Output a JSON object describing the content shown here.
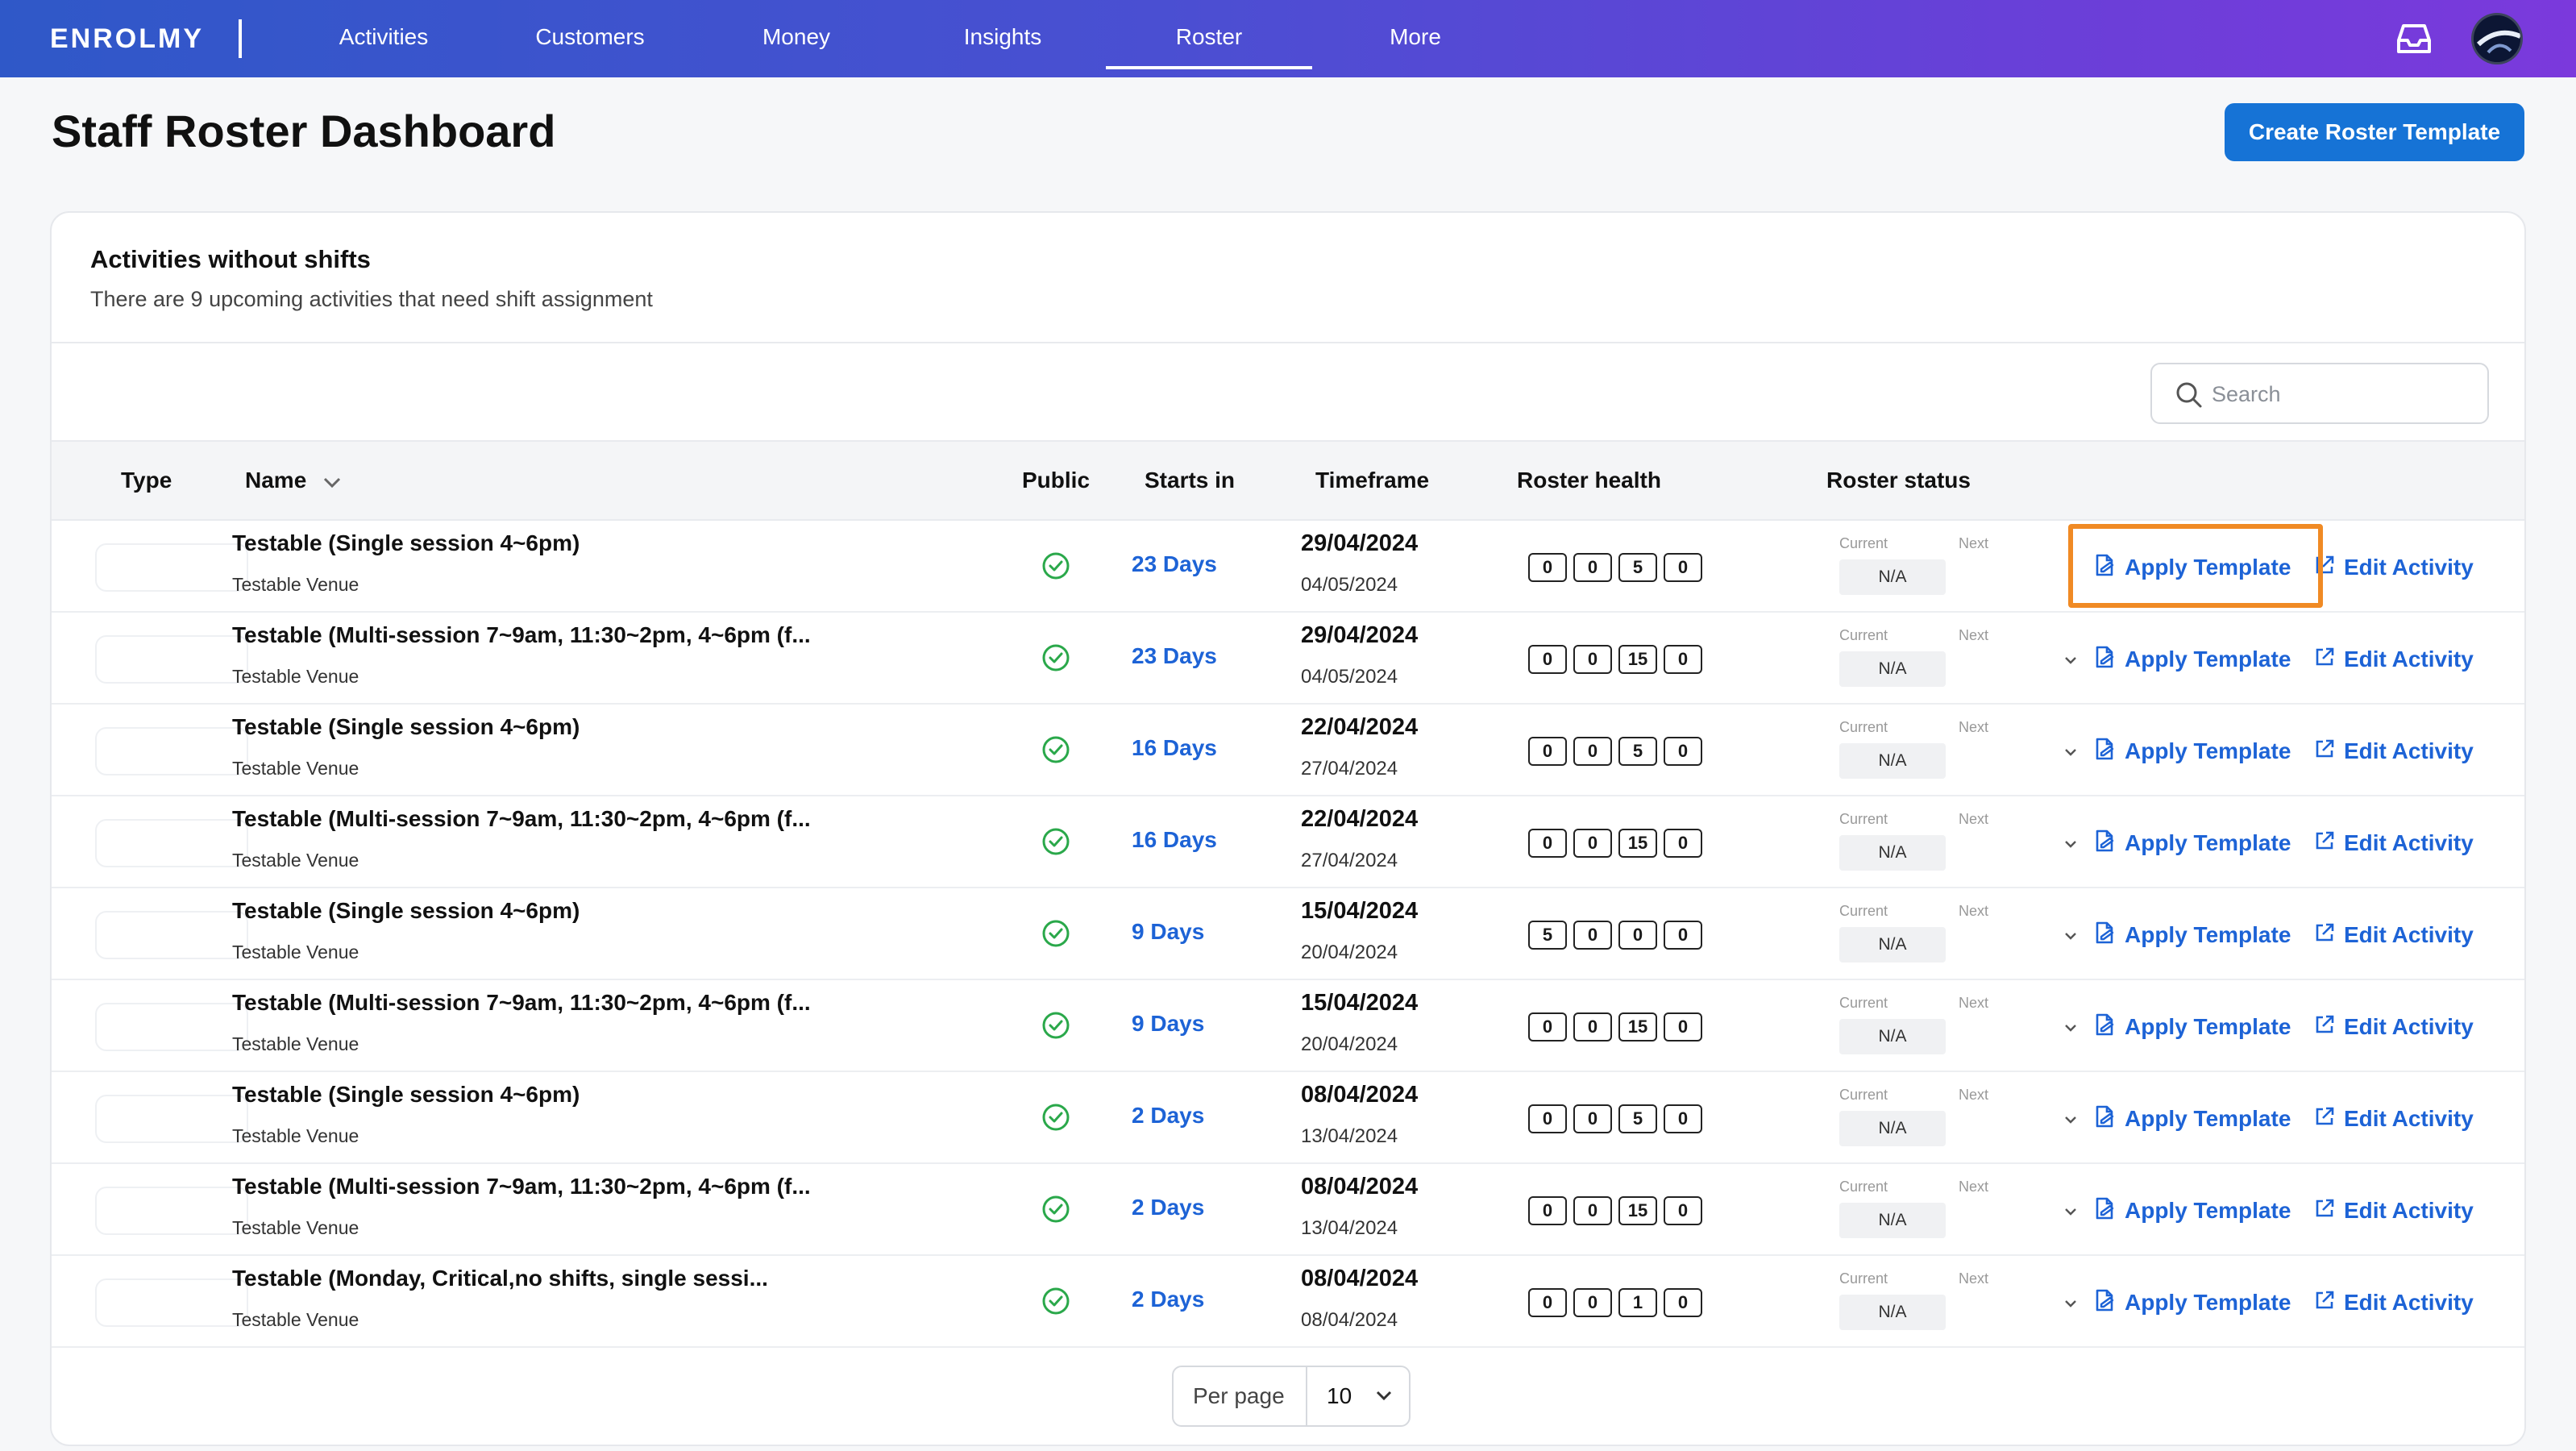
{
  "nav": {
    "logo": "ENROLMY",
    "items": [
      "Activities",
      "Customers",
      "Money",
      "Insights",
      "Roster",
      "More"
    ],
    "active": "Roster"
  },
  "page": {
    "title": "Staff Roster Dashboard",
    "create_button": "Create Roster Template"
  },
  "card": {
    "title": "Activities without shifts",
    "subtitle": "There are 9 upcoming activities that need shift assignment",
    "search_placeholder": "Search"
  },
  "table": {
    "headers": {
      "type": "Type",
      "name": "Name",
      "public": "Public",
      "starts_in": "Starts in",
      "timeframe": "Timeframe",
      "roster_health": "Roster health",
      "roster_status": "Roster status"
    },
    "status_labels": {
      "current": "Current",
      "next": "Next"
    },
    "actions": {
      "apply": "Apply Template",
      "edit": "Edit Activity"
    },
    "rows": [
      {
        "name": "Testable (Single session 4~6pm)",
        "venue": "Testable Venue",
        "starts": "23 Days",
        "start_date": "29/04/2024",
        "end_date": "04/05/2024",
        "health": [
          "0",
          "0",
          "5",
          "0"
        ],
        "status": "N/A"
      },
      {
        "name": "Testable (Multi-session 7~9am, 11:30~2pm, 4~6pm (f...",
        "venue": "Testable Venue",
        "starts": "23 Days",
        "start_date": "29/04/2024",
        "end_date": "04/05/2024",
        "health": [
          "0",
          "0",
          "15",
          "0"
        ],
        "status": "N/A"
      },
      {
        "name": "Testable (Single session 4~6pm)",
        "venue": "Testable Venue",
        "starts": "16 Days",
        "start_date": "22/04/2024",
        "end_date": "27/04/2024",
        "health": [
          "0",
          "0",
          "5",
          "0"
        ],
        "status": "N/A"
      },
      {
        "name": "Testable (Multi-session 7~9am, 11:30~2pm, 4~6pm (f...",
        "venue": "Testable Venue",
        "starts": "16 Days",
        "start_date": "22/04/2024",
        "end_date": "27/04/2024",
        "health": [
          "0",
          "0",
          "15",
          "0"
        ],
        "status": "N/A"
      },
      {
        "name": "Testable (Single session 4~6pm)",
        "venue": "Testable Venue",
        "starts": "9 Days",
        "start_date": "15/04/2024",
        "end_date": "20/04/2024",
        "health": [
          "5",
          "0",
          "0",
          "0"
        ],
        "status": "N/A"
      },
      {
        "name": "Testable (Multi-session 7~9am, 11:30~2pm, 4~6pm (f...",
        "venue": "Testable Venue",
        "starts": "9 Days",
        "start_date": "15/04/2024",
        "end_date": "20/04/2024",
        "health": [
          "0",
          "0",
          "15",
          "0"
        ],
        "status": "N/A"
      },
      {
        "name": "Testable (Single session 4~6pm)",
        "venue": "Testable Venue",
        "starts": "2 Days",
        "start_date": "08/04/2024",
        "end_date": "13/04/2024",
        "health": [
          "0",
          "0",
          "5",
          "0"
        ],
        "status": "N/A"
      },
      {
        "name": "Testable (Multi-session 7~9am, 11:30~2pm, 4~6pm (f...",
        "venue": "Testable Venue",
        "starts": "2 Days",
        "start_date": "08/04/2024",
        "end_date": "13/04/2024",
        "health": [
          "0",
          "0",
          "15",
          "0"
        ],
        "status": "N/A"
      },
      {
        "name": "Testable (Monday, Critical,no shifts, single sessi...",
        "venue": "Testable Venue",
        "starts": "2 Days",
        "start_date": "08/04/2024",
        "end_date": "08/04/2024",
        "health": [
          "0",
          "0",
          "1",
          "0"
        ],
        "status": "N/A"
      }
    ]
  },
  "pagination": {
    "label": "Per page",
    "value": "10"
  },
  "colors": {
    "accent": "#1673d6",
    "link": "#1d63d6",
    "success": "#2aa84a",
    "highlight": "#f08a24"
  }
}
